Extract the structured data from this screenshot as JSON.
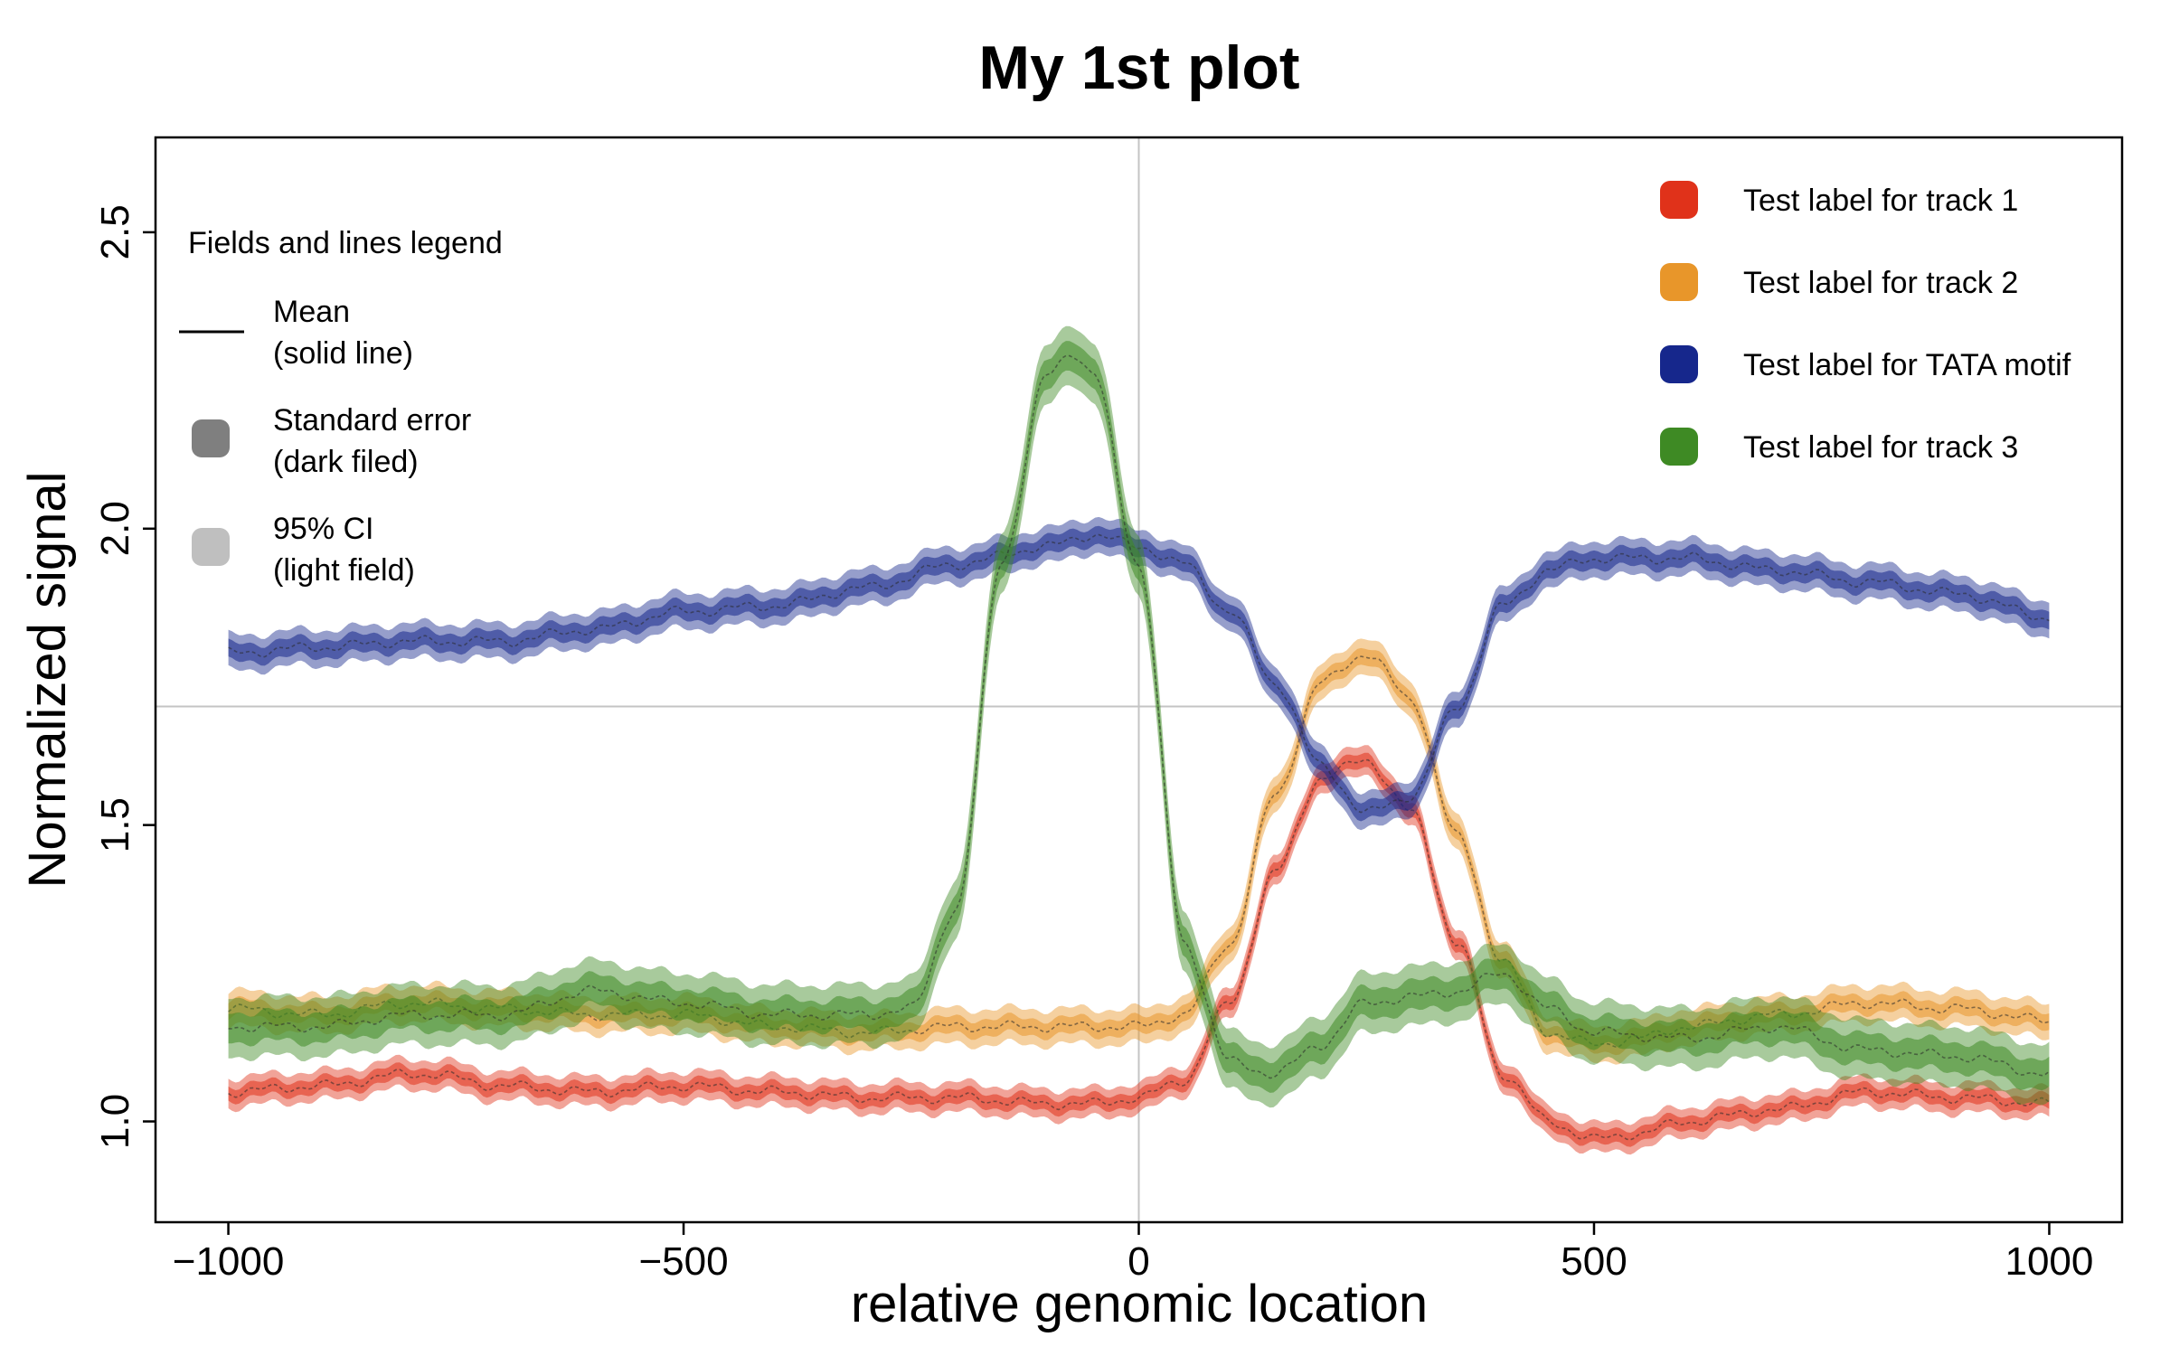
{
  "chart_data": {
    "type": "line",
    "title": "My 1st plot",
    "xlabel": "relative genomic location",
    "ylabel": "Normalized signal",
    "xlim": [
      -1080,
      1080
    ],
    "ylim": [
      0.83,
      2.66
    ],
    "xticks": [
      -1000,
      -500,
      0,
      500,
      1000
    ],
    "xtick_labels": [
      "−1000",
      "−500",
      "0",
      "500",
      "1000"
    ],
    "yticks": [
      1.0,
      1.5,
      2.0,
      2.5
    ],
    "ytick_labels": [
      "1.0",
      "1.5",
      "2.0",
      "2.5"
    ],
    "reference_lines": {
      "x": 0,
      "y": 1.7
    },
    "grid": false,
    "legend_position": "top-right",
    "series": [
      {
        "name": "Test label for track 1",
        "color": "#e0321a",
        "x": [
          -1000,
          -900,
          -800,
          -780,
          -700,
          -600,
          -500,
          -400,
          -300,
          -200,
          -100,
          -50,
          0,
          50,
          100,
          150,
          200,
          250,
          300,
          350,
          400,
          450,
          500,
          550,
          600,
          700,
          800,
          900,
          1000
        ],
        "y": [
          1.05,
          1.06,
          1.08,
          1.08,
          1.06,
          1.05,
          1.06,
          1.05,
          1.04,
          1.04,
          1.03,
          1.03,
          1.04,
          1.07,
          1.2,
          1.42,
          1.58,
          1.61,
          1.52,
          1.3,
          1.08,
          1.0,
          0.97,
          0.98,
          1.0,
          1.02,
          1.05,
          1.04,
          1.03
        ],
        "se": 0.012,
        "ci": 0.025
      },
      {
        "name": "Test label for track 2",
        "color": "#e8962a",
        "x": [
          -1000,
          -900,
          -800,
          -700,
          -600,
          -500,
          -400,
          -300,
          -200,
          -100,
          0,
          50,
          100,
          150,
          200,
          250,
          300,
          350,
          400,
          450,
          500,
          550,
          600,
          700,
          800,
          900,
          1000
        ],
        "y": [
          1.19,
          1.18,
          1.2,
          1.19,
          1.18,
          1.18,
          1.16,
          1.15,
          1.16,
          1.16,
          1.16,
          1.18,
          1.3,
          1.55,
          1.74,
          1.79,
          1.71,
          1.48,
          1.27,
          1.15,
          1.13,
          1.14,
          1.16,
          1.18,
          1.2,
          1.19,
          1.17
        ],
        "se": 0.014,
        "ci": 0.03
      },
      {
        "name": "Test label for TATA motif",
        "color": "#16278c",
        "x": [
          -1000,
          -900,
          -800,
          -700,
          -600,
          -500,
          -400,
          -300,
          -200,
          -100,
          -50,
          0,
          50,
          100,
          150,
          200,
          250,
          300,
          350,
          400,
          450,
          500,
          600,
          700,
          800,
          900,
          1000
        ],
        "y": [
          1.79,
          1.8,
          1.81,
          1.81,
          1.83,
          1.86,
          1.87,
          1.9,
          1.94,
          1.97,
          1.99,
          1.97,
          1.94,
          1.86,
          1.74,
          1.6,
          1.52,
          1.55,
          1.7,
          1.87,
          1.93,
          1.95,
          1.95,
          1.93,
          1.91,
          1.89,
          1.85
        ],
        "se": 0.015,
        "ci": 0.03
      },
      {
        "name": "Test label for track 3",
        "color": "#3e8a24",
        "x": [
          -1000,
          -900,
          -800,
          -700,
          -600,
          -500,
          -400,
          -300,
          -250,
          -200,
          -150,
          -100,
          -75,
          -50,
          0,
          50,
          100,
          150,
          200,
          250,
          300,
          350,
          400,
          450,
          500,
          600,
          700,
          800,
          900,
          1000
        ],
        "y": [
          1.16,
          1.16,
          1.18,
          1.18,
          1.22,
          1.2,
          1.18,
          1.18,
          1.19,
          1.36,
          1.95,
          2.26,
          2.3,
          2.26,
          1.94,
          1.3,
          1.1,
          1.08,
          1.13,
          1.2,
          1.21,
          1.22,
          1.25,
          1.19,
          1.15,
          1.14,
          1.16,
          1.12,
          1.11,
          1.08
        ],
        "se": 0.025,
        "ci": 0.05
      }
    ],
    "legend": {
      "items": [
        {
          "label": "Test label for track 1",
          "color": "#e0321a"
        },
        {
          "label": "Test label for track 2",
          "color": "#e8962a"
        },
        {
          "label": "Test label for TATA motif",
          "color": "#16278c"
        },
        {
          "label": "Test label for track 3",
          "color": "#3e8a24"
        }
      ]
    },
    "fields_legend": {
      "title": "Fields and lines legend",
      "mean_label_1": "Mean",
      "mean_label_2": "(solid line)",
      "se_label_1": "Standard error",
      "se_label_2": "(dark filed)",
      "ci_label_1": "95% CI",
      "ci_label_2": "(light field)",
      "se_color": "#7f7f7f",
      "ci_color": "#bfbfbf"
    }
  }
}
